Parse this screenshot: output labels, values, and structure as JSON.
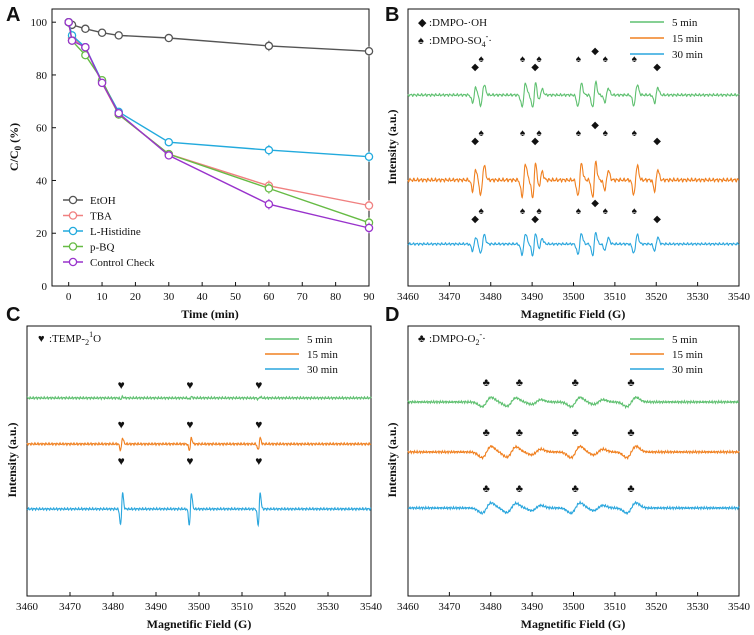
{
  "chart_data": [
    {
      "panel": "A",
      "type": "line",
      "xlabel": "Time (min)",
      "ylabel": "C/C0 (%)",
      "ylabel_main": "C/C",
      "ylabel_sub": "0",
      "ylabel_unit": " (%)",
      "xlim": [
        -5,
        90
      ],
      "ylim": [
        0,
        105
      ],
      "xticks": [
        0,
        10,
        20,
        30,
        40,
        50,
        60,
        70,
        80,
        90
      ],
      "yticks": [
        0,
        20,
        40,
        60,
        80,
        100
      ],
      "x": [
        0,
        1,
        5,
        10,
        15,
        30,
        60,
        90
      ],
      "series": [
        {
          "name": "EtOH",
          "color": "#555555",
          "values": [
            100,
            99,
            97.5,
            96,
            95,
            94,
            91,
            89
          ]
        },
        {
          "name": "TBA",
          "color": "#f08080",
          "values": [
            100,
            94,
            90.5,
            77,
            65,
            50,
            38,
            30.5
          ]
        },
        {
          "name": "L-Histidine",
          "color": "#22aadd",
          "values": [
            100,
            95,
            90.5,
            77.5,
            66,
            54.5,
            51.5,
            49
          ]
        },
        {
          "name": "p-BQ",
          "color": "#66bb44",
          "values": [
            100,
            93,
            87.5,
            78,
            65,
            50,
            37,
            24
          ]
        },
        {
          "name": "Control Check",
          "color": "#9933cc",
          "values": [
            100,
            93,
            90.5,
            77,
            65.5,
            49.5,
            31,
            22
          ]
        }
      ],
      "error_at": [
        60,
        90
      ],
      "legend_position": "bottom-left"
    },
    {
      "panel": "B",
      "type": "line",
      "xlabel": "Magnetific Field (G)",
      "ylabel": "Intensity (a.u.)",
      "xlim": [
        3460,
        3540
      ],
      "xticks": [
        3460,
        3470,
        3480,
        3490,
        3500,
        3510,
        3520,
        3530,
        3540
      ],
      "series": [
        {
          "name": "5 min",
          "color": "#5fc070",
          "offset": 0,
          "amp": 1.0
        },
        {
          "name": "15 min",
          "color": "#f08020",
          "offset": 1,
          "amp": 1.4
        },
        {
          "name": "30 min",
          "color": "#2aa6dd",
          "offset": 2,
          "amp": 0.9
        }
      ],
      "markers": [
        {
          "label": "DMPO-·OH",
          "symbol": "◆",
          "color": "#8a2be2",
          "fields": [
            3476,
            3490.5,
            3505,
            3520
          ]
        },
        {
          "label": "DMPO-SO4-·",
          "symbol": "♠",
          "color": "#e0201a",
          "fields": [
            3478,
            3488,
            3492,
            3501.5,
            3508,
            3515
          ]
        }
      ],
      "marker_legend": [
        {
          "symbol": "◆",
          "color": "#8a2be2",
          "text": ":DMPO-·OH"
        },
        {
          "symbol": "♠",
          "color": "#e0201a",
          "text": ":DMPO-SO",
          "sub": "4",
          "sup": "-",
          "tail": "·"
        }
      ],
      "legend_position": "top-right"
    },
    {
      "panel": "C",
      "type": "line",
      "xlabel": "Magnetific Field (G)",
      "ylabel": "Intensity (a.u.)",
      "xlim": [
        3460,
        3540
      ],
      "xticks": [
        3460,
        3470,
        3480,
        3490,
        3500,
        3510,
        3520,
        3530,
        3540
      ],
      "series": [
        {
          "name": "5 min",
          "color": "#5fc070",
          "offset": 0,
          "amp": 0.15
        },
        {
          "name": "15 min",
          "color": "#f08020",
          "offset": 1,
          "amp": 0.8
        },
        {
          "name": "30 min",
          "color": "#2aa6dd",
          "offset": 2,
          "amp": 2.1
        }
      ],
      "markers": [
        {
          "label": "TEMP-1O2",
          "symbol": "♥",
          "color": "#8a2be2",
          "fields": [
            3482,
            3498,
            3514
          ]
        }
      ],
      "marker_legend": [
        {
          "symbol": "♥",
          "color": "#8a2be2",
          "text": ":TEMP-",
          "sup": "1",
          "tail": "O",
          "sub": "2"
        }
      ],
      "legend_position": "top-right"
    },
    {
      "panel": "D",
      "type": "line",
      "xlabel": "Magnetific Field (G)",
      "ylabel": "Intensity (a.u.)",
      "xlim": [
        3460,
        3540
      ],
      "xticks": [
        3460,
        3470,
        3480,
        3490,
        3500,
        3510,
        3520,
        3530,
        3540
      ],
      "series": [
        {
          "name": "5 min",
          "color": "#5fc070",
          "offset": 0,
          "amp": 0.9
        },
        {
          "name": "15 min",
          "color": "#f08020",
          "offset": 1,
          "amp": 1.1
        },
        {
          "name": "30 min",
          "color": "#2aa6dd",
          "offset": 2,
          "amp": 1.0
        }
      ],
      "markers": [
        {
          "label": "DMPO-O2-·",
          "symbol": "♣",
          "color": "#8a2be2",
          "fields": [
            3479,
            3487,
            3500.5,
            3514
          ]
        }
      ],
      "marker_legend": [
        {
          "symbol": "♣",
          "color": "#8a2be2",
          "text": ":DMPO-O",
          "sub": "2",
          "sup": "-",
          "tail": "·"
        }
      ],
      "legend_position": "top-right"
    }
  ]
}
